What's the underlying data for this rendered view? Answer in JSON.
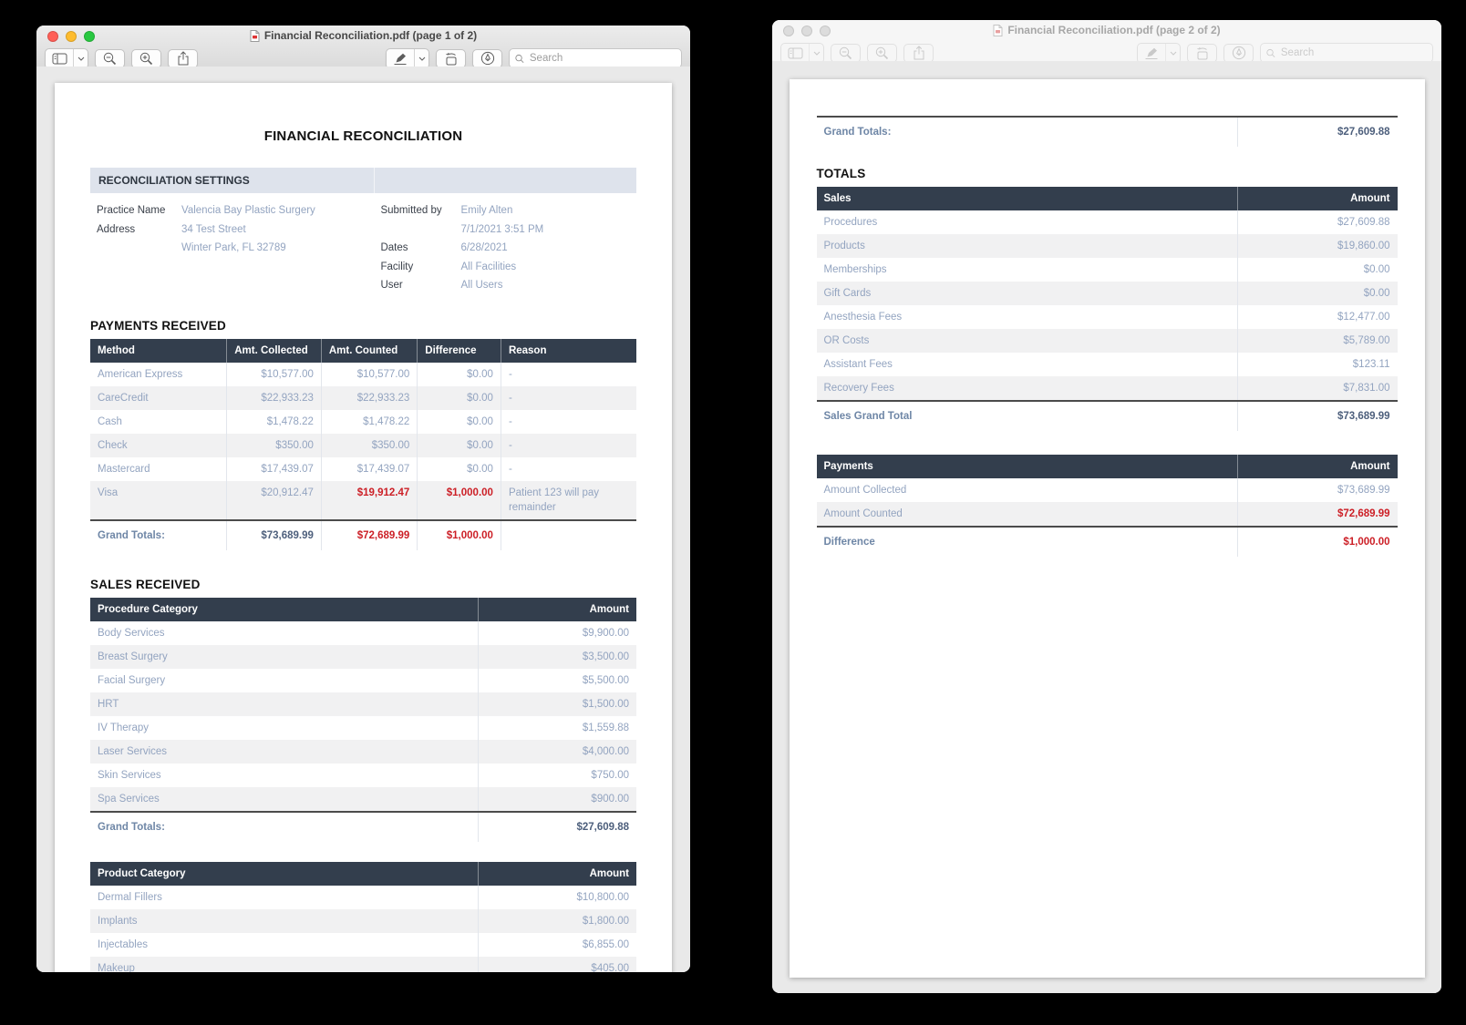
{
  "left_window": {
    "title": "Financial Reconciliation.pdf (page 1 of 2)",
    "search_placeholder": "Search",
    "page": {
      "doc_title": "FINANCIAL RECONCILIATION",
      "settings": {
        "header": "RECONCILIATION SETTINGS",
        "practice_name_label": "Practice Name",
        "practice_name": "Valencia Bay Plastic Surgery",
        "address_label": "Address",
        "address_line1": "34 Test Street",
        "address_line2": "Winter Park, FL 32789",
        "submitted_by_label": "Submitted by",
        "submitted_by": "Emily Alten",
        "submitted_at": "7/1/2021 3:51 PM",
        "dates_label": "Dates",
        "dates": "6/28/2021",
        "facility_label": "Facility",
        "facility": "All Facilities",
        "user_label": "User",
        "user": "All Users"
      },
      "payments_received": {
        "heading": "PAYMENTS RECEIVED",
        "head": [
          {
            "text": "Method",
            "cls": "th-left"
          },
          {
            "text": "Amt. Collected",
            "cls": "th-left"
          },
          {
            "text": "Amt. Counted",
            "cls": "th-left"
          },
          {
            "text": "Difference",
            "cls": "th-left"
          },
          {
            "text": "Reason",
            "cls": "th-left"
          }
        ],
        "rows": [
          {
            "cells": [
              {
                "text": "American Express"
              },
              {
                "text": "$10,577.00",
                "cls": "num"
              },
              {
                "text": "$10,577.00",
                "cls": "num"
              },
              {
                "text": "$0.00",
                "cls": "num"
              },
              {
                "text": "-"
              }
            ]
          },
          {
            "cells": [
              {
                "text": "CareCredit"
              },
              {
                "text": "$22,933.23",
                "cls": "num"
              },
              {
                "text": "$22,933.23",
                "cls": "num"
              },
              {
                "text": "$0.00",
                "cls": "num"
              },
              {
                "text": "-"
              }
            ]
          },
          {
            "cells": [
              {
                "text": "Cash"
              },
              {
                "text": "$1,478.22",
                "cls": "num"
              },
              {
                "text": "$1,478.22",
                "cls": "num"
              },
              {
                "text": "$0.00",
                "cls": "num"
              },
              {
                "text": "-"
              }
            ]
          },
          {
            "cells": [
              {
                "text": "Check"
              },
              {
                "text": "$350.00",
                "cls": "num"
              },
              {
                "text": "$350.00",
                "cls": "num"
              },
              {
                "text": "$0.00",
                "cls": "num"
              },
              {
                "text": "-"
              }
            ]
          },
          {
            "cells": [
              {
                "text": "Mastercard"
              },
              {
                "text": "$17,439.07",
                "cls": "num"
              },
              {
                "text": "$17,439.07",
                "cls": "num"
              },
              {
                "text": "$0.00",
                "cls": "num"
              },
              {
                "text": "-"
              }
            ]
          },
          {
            "cells": [
              {
                "text": "Visa"
              },
              {
                "text": "$20,912.47",
                "cls": "num"
              },
              {
                "text": "$19,912.47",
                "cls": "num red"
              },
              {
                "text": "$1,000.00",
                "cls": "num red"
              },
              {
                "text": "Patient 123 will pay remainder"
              }
            ]
          },
          {
            "cls": "totals",
            "cells": [
              {
                "text": "Grand Totals:"
              },
              {
                "text": "$73,689.99",
                "cls": "num"
              },
              {
                "text": "$72,689.99",
                "cls": "num red"
              },
              {
                "text": "$1,000.00",
                "cls": "num red"
              },
              {
                "text": ""
              }
            ]
          }
        ]
      },
      "sales_received": {
        "heading": "SALES RECEIVED",
        "procedures": {
          "head": [
            {
              "text": "Procedure Category",
              "cls": "th-left"
            },
            {
              "text": "Amount",
              "cls": "th-right"
            }
          ],
          "rows": [
            {
              "cells": [
                {
                  "text": "Body Services"
                },
                {
                  "text": "$9,900.00",
                  "cls": "num"
                }
              ]
            },
            {
              "cells": [
                {
                  "text": "Breast Surgery"
                },
                {
                  "text": "$3,500.00",
                  "cls": "num"
                }
              ]
            },
            {
              "cells": [
                {
                  "text": "Facial Surgery"
                },
                {
                  "text": "$5,500.00",
                  "cls": "num"
                }
              ]
            },
            {
              "cells": [
                {
                  "text": "HRT"
                },
                {
                  "text": "$1,500.00",
                  "cls": "num"
                }
              ]
            },
            {
              "cells": [
                {
                  "text": "IV Therapy"
                },
                {
                  "text": "$1,559.88",
                  "cls": "num"
                }
              ]
            },
            {
              "cells": [
                {
                  "text": "Laser Services"
                },
                {
                  "text": "$4,000.00",
                  "cls": "num"
                }
              ]
            },
            {
              "cells": [
                {
                  "text": "Skin Services"
                },
                {
                  "text": "$750.00",
                  "cls": "num"
                }
              ]
            },
            {
              "cells": [
                {
                  "text": "Spa Services"
                },
                {
                  "text": "$900.00",
                  "cls": "num"
                }
              ]
            },
            {
              "cls": "totals",
              "cells": [
                {
                  "text": "Grand Totals:"
                },
                {
                  "text": "$27,609.88",
                  "cls": "num"
                }
              ]
            }
          ]
        },
        "products": {
          "head": [
            {
              "text": "Product Category",
              "cls": "th-left"
            },
            {
              "text": "Amount",
              "cls": "th-right"
            }
          ],
          "rows": [
            {
              "cells": [
                {
                  "text": "Dermal Fillers"
                },
                {
                  "text": "$10,800.00",
                  "cls": "num"
                }
              ]
            },
            {
              "cells": [
                {
                  "text": "Implants"
                },
                {
                  "text": "$1,800.00",
                  "cls": "num"
                }
              ]
            },
            {
              "cells": [
                {
                  "text": "Injectables"
                },
                {
                  "text": "$6,855.00",
                  "cls": "num"
                }
              ]
            },
            {
              "cells": [
                {
                  "text": "Makeup"
                },
                {
                  "text": "$405.00",
                  "cls": "num"
                }
              ]
            }
          ]
        }
      }
    }
  },
  "right_window": {
    "title": "Financial Reconciliation.pdf (page 2 of 2)",
    "search_placeholder": "Search",
    "page": {
      "carryover": {
        "rows": [
          {
            "cls": "totals",
            "cells": [
              {
                "text": "Grand Totals:"
              },
              {
                "text": "$27,609.88",
                "cls": "num"
              }
            ]
          }
        ]
      },
      "totals_heading": "TOTALS",
      "sales": {
        "head": [
          {
            "text": "Sales",
            "cls": "th-left"
          },
          {
            "text": "Amount",
            "cls": "th-right"
          }
        ],
        "rows": [
          {
            "cells": [
              {
                "text": "Procedures"
              },
              {
                "text": "$27,609.88",
                "cls": "num"
              }
            ]
          },
          {
            "cells": [
              {
                "text": "Products"
              },
              {
                "text": "$19,860.00",
                "cls": "num"
              }
            ]
          },
          {
            "cells": [
              {
                "text": "Memberships"
              },
              {
                "text": "$0.00",
                "cls": "num"
              }
            ]
          },
          {
            "cells": [
              {
                "text": "Gift Cards"
              },
              {
                "text": "$0.00",
                "cls": "num"
              }
            ]
          },
          {
            "cells": [
              {
                "text": "Anesthesia Fees"
              },
              {
                "text": "$12,477.00",
                "cls": "num"
              }
            ]
          },
          {
            "cells": [
              {
                "text": "OR Costs"
              },
              {
                "text": "$5,789.00",
                "cls": "num"
              }
            ]
          },
          {
            "cells": [
              {
                "text": "Assistant Fees"
              },
              {
                "text": "$123.11",
                "cls": "num"
              }
            ]
          },
          {
            "cells": [
              {
                "text": "Recovery Fees"
              },
              {
                "text": "$7,831.00",
                "cls": "num"
              }
            ]
          },
          {
            "cls": "totals",
            "cells": [
              {
                "text": "Sales Grand Total"
              },
              {
                "text": "$73,689.99",
                "cls": "num"
              }
            ]
          }
        ]
      },
      "payments": {
        "head": [
          {
            "text": "Payments",
            "cls": "th-left"
          },
          {
            "text": "Amount",
            "cls": "th-right"
          }
        ],
        "rows": [
          {
            "cells": [
              {
                "text": "Amount Collected"
              },
              {
                "text": "$73,689.99",
                "cls": "num"
              }
            ]
          },
          {
            "cells": [
              {
                "text": "Amount Counted"
              },
              {
                "text": "$72,689.99",
                "cls": "num red"
              }
            ]
          },
          {
            "cls": "totals",
            "cells": [
              {
                "text": "Difference"
              },
              {
                "text": "$1,000.00",
                "cls": "num red"
              }
            ]
          }
        ]
      }
    }
  }
}
